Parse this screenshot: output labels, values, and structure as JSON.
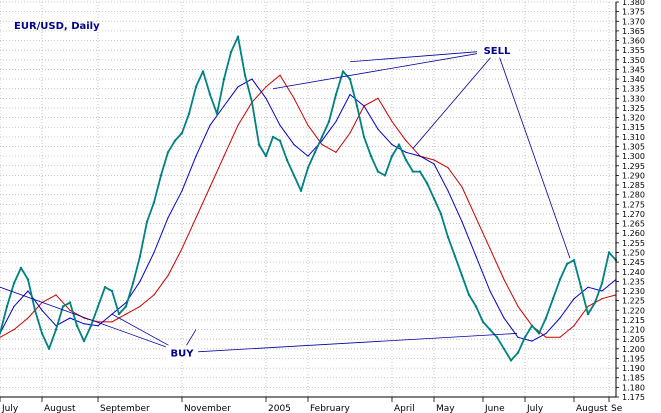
{
  "chart_data": {
    "type": "line",
    "title": "EUR/USD, Daily",
    "xlabel": "",
    "ylabel": "",
    "ylim": [
      1.175,
      1.38
    ],
    "ytick_step": 0.005,
    "y_ticks": [
      "1.175",
      "1.180",
      "1.185",
      "1.190",
      "1.195",
      "1.200",
      "1.205",
      "1.210",
      "1.215",
      "1.220",
      "1.225",
      "1.230",
      "1.235",
      "1.240",
      "1.245",
      "1.250",
      "1.255",
      "1.260",
      "1.265",
      "1.270",
      "1.275",
      "1.280",
      "1.285",
      "1.290",
      "1.295",
      "1.300",
      "1.305",
      "1.310",
      "1.315",
      "1.320",
      "1.325",
      "1.330",
      "1.335",
      "1.340",
      "1.345",
      "1.350",
      "1.355",
      "1.360",
      "1.365",
      "1.370",
      "1.375",
      "1.380"
    ],
    "x_ticks": [
      "July",
      "August",
      "September",
      "November",
      "2005",
      "February",
      "April",
      "May",
      "June",
      "July",
      "August",
      "Se"
    ],
    "x_tick_days": [
      0,
      42,
      98,
      182,
      266,
      308,
      392,
      434,
      483,
      525,
      574,
      609
    ],
    "x_range_days": [
      0,
      616
    ],
    "grid": true,
    "series": [
      {
        "color": "#008080",
        "x": [
          0,
          7,
          14,
          21,
          28,
          35,
          42,
          49,
          56,
          63,
          70,
          77,
          84,
          91,
          98,
          105,
          112,
          119,
          126,
          133,
          140,
          147,
          154,
          161,
          168,
          175,
          182,
          189,
          196,
          203,
          210,
          217,
          224,
          231,
          238,
          245,
          252,
          259,
          266,
          273,
          280,
          287,
          294,
          301,
          308,
          315,
          322,
          329,
          336,
          343,
          350,
          357,
          364,
          371,
          378,
          385,
          392,
          399,
          406,
          413,
          420,
          427,
          434,
          441,
          448,
          455,
          462,
          469,
          476,
          483,
          490,
          497,
          504,
          511,
          518,
          525,
          532,
          539,
          546,
          553,
          560,
          567,
          574,
          581,
          588,
          595,
          602,
          609,
          616
        ],
        "y": [
          1.208,
          1.222,
          1.234,
          1.242,
          1.236,
          1.22,
          1.208,
          1.2,
          1.21,
          1.222,
          1.224,
          1.212,
          1.204,
          1.212,
          1.222,
          1.232,
          1.23,
          1.218,
          1.222,
          1.234,
          1.248,
          1.266,
          1.276,
          1.29,
          1.302,
          1.308,
          1.312,
          1.322,
          1.336,
          1.344,
          1.332,
          1.322,
          1.34,
          1.354,
          1.362,
          1.342,
          1.328,
          1.306,
          1.3,
          1.31,
          1.308,
          1.298,
          1.29,
          1.282,
          1.294,
          1.302,
          1.31,
          1.318,
          1.332,
          1.344,
          1.34,
          1.326,
          1.31,
          1.3,
          1.292,
          1.29,
          1.3,
          1.306,
          1.298,
          1.292,
          1.292,
          1.286,
          1.278,
          1.27,
          1.258,
          1.248,
          1.238,
          1.228,
          1.222,
          1.214,
          1.21,
          1.206,
          1.2,
          1.194,
          1.198,
          1.206,
          1.212,
          1.208,
          1.216,
          1.226,
          1.236,
          1.244,
          1.246,
          1.232,
          1.218,
          1.224,
          1.234,
          1.25,
          1.246
        ]
      },
      {
        "color": "#0000cc",
        "x": [
          0,
          14,
          28,
          42,
          56,
          70,
          84,
          98,
          112,
          126,
          140,
          154,
          168,
          182,
          196,
          210,
          224,
          238,
          252,
          266,
          280,
          294,
          308,
          322,
          336,
          350,
          364,
          378,
          392,
          406,
          420,
          434,
          448,
          462,
          476,
          490,
          504,
          518,
          532,
          546,
          560,
          574,
          588,
          602,
          616
        ],
        "y": [
          1.208,
          1.222,
          1.23,
          1.22,
          1.212,
          1.216,
          1.213,
          1.212,
          1.218,
          1.224,
          1.235,
          1.25,
          1.268,
          1.282,
          1.3,
          1.316,
          1.326,
          1.336,
          1.34,
          1.33,
          1.316,
          1.306,
          1.3,
          1.308,
          1.318,
          1.332,
          1.326,
          1.314,
          1.306,
          1.302,
          1.3,
          1.296,
          1.282,
          1.266,
          1.248,
          1.23,
          1.216,
          1.206,
          1.204,
          1.208,
          1.216,
          1.226,
          1.232,
          1.23,
          1.236
        ]
      },
      {
        "color": "#cc0000",
        "x": [
          0,
          14,
          28,
          42,
          56,
          70,
          84,
          98,
          112,
          126,
          140,
          154,
          168,
          182,
          196,
          210,
          224,
          238,
          252,
          266,
          280,
          294,
          308,
          322,
          336,
          350,
          364,
          378,
          392,
          406,
          420,
          434,
          448,
          462,
          476,
          490,
          504,
          518,
          532,
          546,
          560,
          574,
          588,
          602,
          616
        ],
        "y": [
          1.206,
          1.21,
          1.216,
          1.224,
          1.228,
          1.22,
          1.216,
          1.214,
          1.214,
          1.218,
          1.222,
          1.228,
          1.238,
          1.252,
          1.268,
          1.284,
          1.3,
          1.316,
          1.328,
          1.336,
          1.342,
          1.33,
          1.316,
          1.306,
          1.302,
          1.312,
          1.326,
          1.33,
          1.318,
          1.308,
          1.3,
          1.298,
          1.294,
          1.284,
          1.268,
          1.252,
          1.236,
          1.222,
          1.212,
          1.206,
          1.206,
          1.212,
          1.222,
          1.226,
          1.228
        ]
      }
    ],
    "annotations": [
      {
        "label": "SELL",
        "day": 497,
        "y": 1.355,
        "targets": [
          {
            "day": 273,
            "y": 1.335
          },
          {
            "day": 350,
            "y": 1.349
          },
          {
            "day": 413,
            "y": 1.304
          },
          {
            "day": 570,
            "y": 1.247
          }
        ]
      },
      {
        "label": "BUY",
        "day": 182,
        "y": 1.198,
        "targets": [
          {
            "day": 0,
            "y": 1.232
          },
          {
            "day": 112,
            "y": 1.218
          },
          {
            "day": 196,
            "y": 1.21
          },
          {
            "day": 517,
            "y": 1.208
          }
        ]
      }
    ]
  }
}
